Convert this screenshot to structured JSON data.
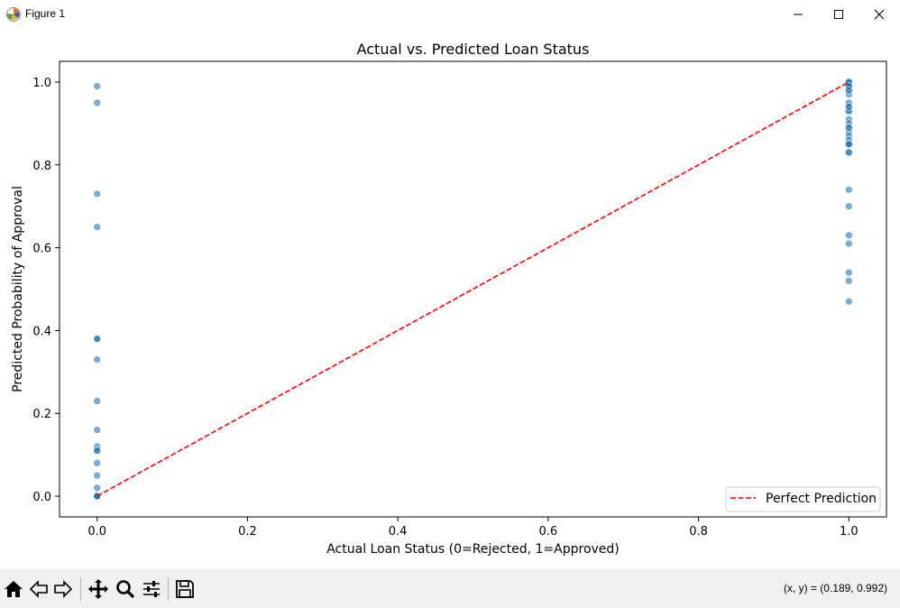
{
  "window": {
    "title": "Figure 1",
    "icons": [
      "matplotlib-icon",
      "minimize-icon",
      "maximize-icon",
      "close-icon"
    ]
  },
  "toolbar": {
    "buttons": [
      "home-icon",
      "back-icon",
      "forward-icon",
      "pan-icon",
      "zoom-icon",
      "configure-subplots-icon",
      "save-icon"
    ],
    "coords_text": "(x, y) = (0.189, 0.992)"
  },
  "colors": {
    "points": "#1f77b4",
    "reference_line": "#ff0000"
  },
  "chart_data": {
    "type": "scatter",
    "title": "Actual vs. Predicted Loan Status",
    "xlabel": "Actual Loan Status (0=Rejected, 1=Approved)",
    "ylabel": "Predicted Probability of Approval",
    "xlim": [
      -0.05,
      1.05
    ],
    "ylim": [
      -0.05,
      1.05
    ],
    "xticks": [
      0.0,
      0.2,
      0.4,
      0.6,
      0.8,
      1.0
    ],
    "xtick_labels": [
      "0.0",
      "0.2",
      "0.4",
      "0.6",
      "0.8",
      "1.0"
    ],
    "yticks": [
      0.0,
      0.2,
      0.4,
      0.6,
      0.8,
      1.0
    ],
    "ytick_labels": [
      "0.0",
      "0.2",
      "0.4",
      "0.6",
      "0.8",
      "1.0"
    ],
    "grid": false,
    "legend": {
      "placement": "lower-right",
      "entries": [
        "Perfect Prediction"
      ]
    },
    "series": [
      {
        "x": [
          0,
          0,
          0,
          0,
          0,
          0,
          0,
          0,
          0,
          0,
          0,
          0,
          0,
          0,
          0,
          0,
          0,
          0,
          0,
          0,
          0,
          0,
          1,
          1,
          1,
          1,
          1,
          1,
          1,
          1,
          1,
          1,
          1,
          1,
          1,
          1,
          1,
          1,
          1,
          1,
          1,
          1,
          1,
          1,
          1,
          1,
          1,
          1,
          1,
          1,
          1,
          1,
          1,
          1,
          1,
          1
        ],
        "y": [
          0.99,
          0.95,
          0.73,
          0.65,
          0.38,
          0.38,
          0.33,
          0.23,
          0.16,
          0.12,
          0.11,
          0.11,
          0.08,
          0.05,
          0.02,
          0.0,
          0.0,
          0.0,
          0.0,
          0.0,
          0.0,
          0.0,
          1.0,
          1.0,
          1.0,
          1.0,
          0.99,
          0.99,
          0.98,
          0.97,
          0.95,
          0.94,
          0.93,
          0.93,
          0.91,
          0.9,
          0.89,
          0.88,
          0.87,
          0.86,
          0.85,
          0.85,
          0.85,
          0.83,
          0.83,
          0.74,
          0.7,
          0.63,
          0.61,
          0.54,
          0.52,
          0.47,
          0.99,
          0.98,
          0.94,
          0.89
        ]
      }
    ],
    "reference_line": {
      "name": "Perfect Prediction",
      "x": [
        0,
        1
      ],
      "y": [
        0,
        1
      ],
      "style": "dashed"
    }
  }
}
